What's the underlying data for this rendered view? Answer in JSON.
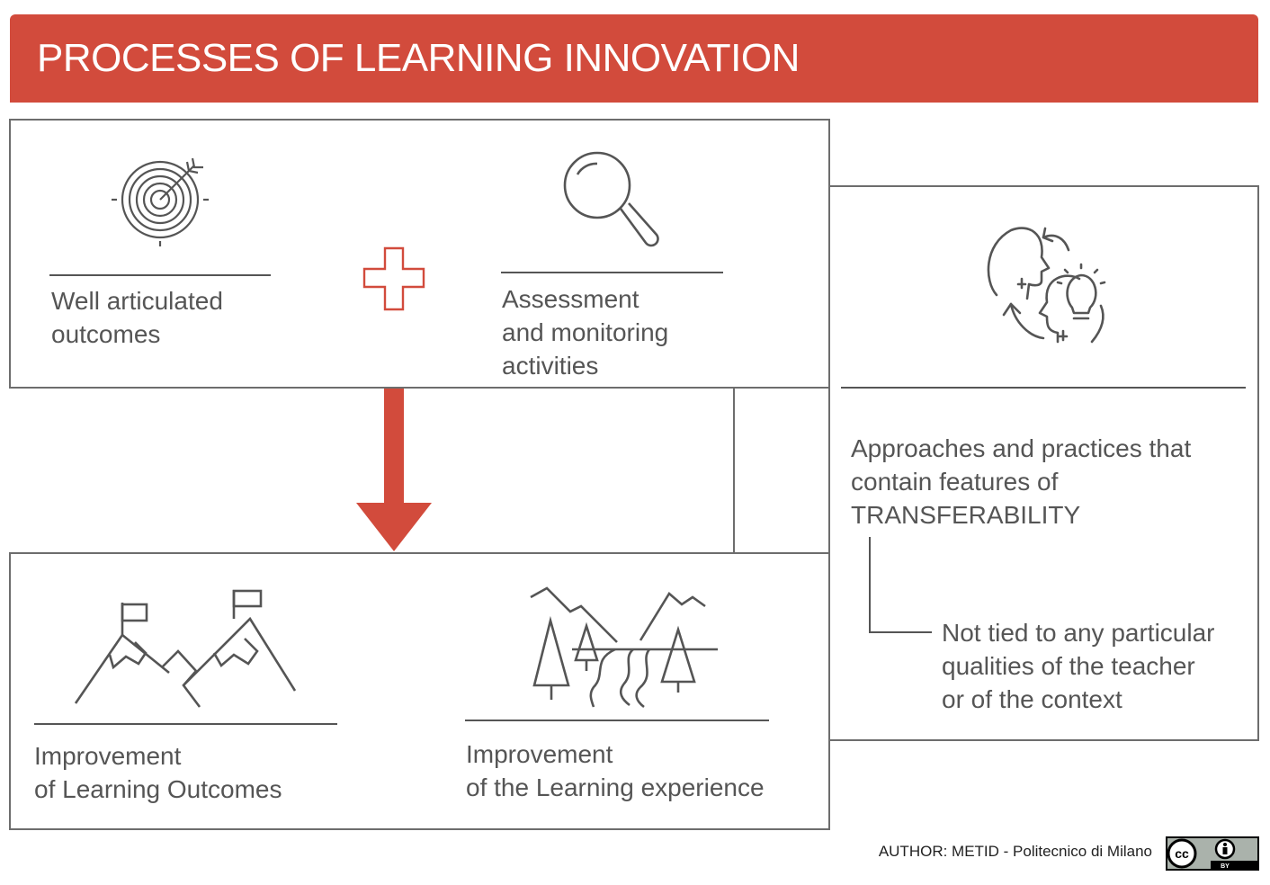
{
  "banner": {
    "title": "PROCESSES OF LEARNING INNOVATION",
    "color": "#d24b3c"
  },
  "top_panel": {
    "left_item": {
      "icon": "target-icon",
      "lines": [
        "Well articulated",
        "outcomes"
      ]
    },
    "operator_icon": "plus-icon",
    "right_item": {
      "icon": "magnifier-icon",
      "lines": [
        "Assessment",
        "and monitoring",
        "activities"
      ]
    }
  },
  "arrow": {
    "icon": "arrow-down-icon",
    "color": "#d24b3c"
  },
  "bottom_panel": {
    "left_item": {
      "icon": "mountains-flags-icon",
      "lines": [
        "Improvement",
        "of Learning Outcomes"
      ]
    },
    "right_item": {
      "icon": "landscape-river-icon",
      "lines": [
        "Improvement",
        "of the Learning experience"
      ]
    }
  },
  "side_panel": {
    "icon": "heads-idea-exchange-icon",
    "lines": [
      "Approaches and practices that",
      "contain features of",
      "TRANSFERABILITY"
    ],
    "sub_lines": [
      "Not tied to any particular",
      "qualities of the teacher",
      "or of the context"
    ]
  },
  "footer": {
    "author": "AUTHOR: METID - Politecnico di Milano",
    "license_icon": "cc-by-icon",
    "license_label": "BY"
  }
}
